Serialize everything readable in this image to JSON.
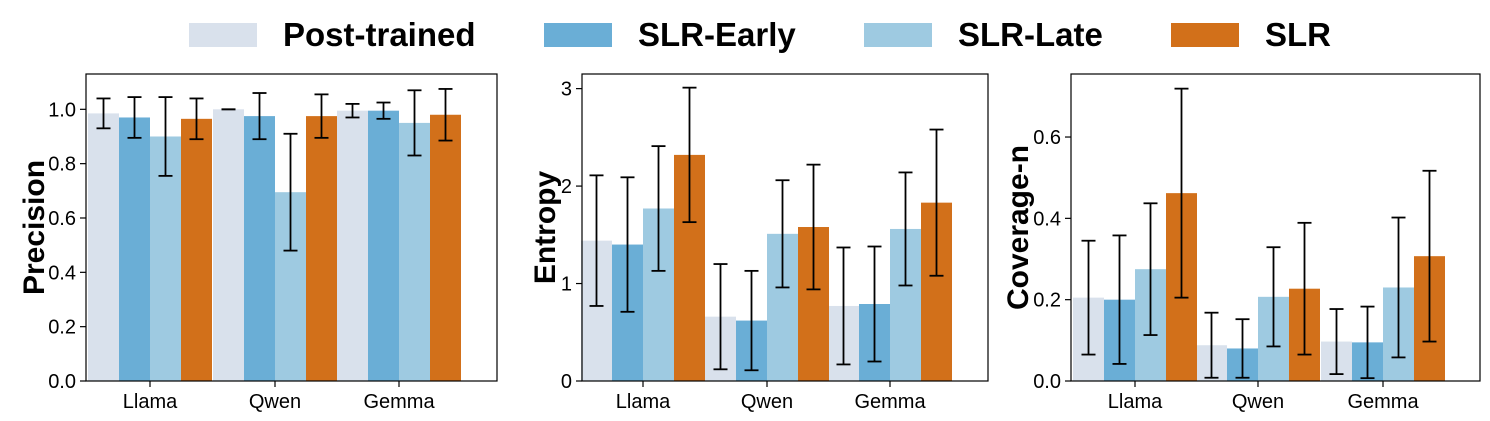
{
  "legend": [
    {
      "label": "Post-trained",
      "color": "#d9e1ec"
    },
    {
      "label": "SLR-Early",
      "color": "#6aaed6"
    },
    {
      "label": "SLR-Late",
      "color": "#9ecae1"
    },
    {
      "label": "SLR",
      "color": "#d2701a"
    }
  ],
  "chart_data": [
    {
      "type": "bar",
      "ylabel": "Precision",
      "categories": [
        "Llama",
        "Qwen",
        "Gemma"
      ],
      "ylim": [
        0,
        1.13
      ],
      "yticks": [
        0.0,
        0.2,
        0.4,
        0.6,
        0.8,
        1.0
      ],
      "ytick_labels": [
        "0.0",
        "0.2",
        "0.4",
        "0.6",
        "0.8",
        "1.0"
      ],
      "error_bars": true,
      "series": [
        {
          "name": "Post-trained",
          "values": [
            0.985,
            1.0,
            0.995
          ],
          "errors": [
            0.055,
            0.0,
            0.025
          ]
        },
        {
          "name": "SLR-Early",
          "values": [
            0.97,
            0.975,
            0.995
          ],
          "errors": [
            0.075,
            0.085,
            0.03
          ]
        },
        {
          "name": "SLR-Late",
          "values": [
            0.9,
            0.695,
            0.95
          ],
          "errors": [
            0.145,
            0.215,
            0.12
          ]
        },
        {
          "name": "SLR",
          "values": [
            0.965,
            0.975,
            0.98
          ],
          "errors": [
            0.075,
            0.08,
            0.095
          ]
        }
      ]
    },
    {
      "type": "bar",
      "ylabel": "Entropy",
      "categories": [
        "Llama",
        "Qwen",
        "Gemma"
      ],
      "ylim": [
        0,
        3.15
      ],
      "yticks": [
        0,
        1,
        2,
        3
      ],
      "ytick_labels": [
        "0",
        "1",
        "2",
        "3"
      ],
      "error_bars": true,
      "series": [
        {
          "name": "Post-trained",
          "values": [
            1.44,
            0.66,
            0.77
          ],
          "errors": [
            0.67,
            0.54,
            0.6
          ]
        },
        {
          "name": "SLR-Early",
          "values": [
            1.4,
            0.62,
            0.79
          ],
          "errors": [
            0.69,
            0.51,
            0.59
          ]
        },
        {
          "name": "SLR-Late",
          "values": [
            1.77,
            1.51,
            1.56
          ],
          "errors": [
            0.64,
            0.55,
            0.58
          ]
        },
        {
          "name": "SLR",
          "values": [
            2.32,
            1.58,
            1.83
          ],
          "errors": [
            0.69,
            0.64,
            0.75
          ]
        }
      ]
    },
    {
      "type": "bar",
      "ylabel": "Coverage-n",
      "categories": [
        "Llama",
        "Qwen",
        "Gemma"
      ],
      "ylim": [
        0,
        0.755
      ],
      "yticks": [
        0.0,
        0.2,
        0.4,
        0.6
      ],
      "ytick_labels": [
        "0.0",
        "0.2",
        "0.4",
        "0.6"
      ],
      "error_bars": true,
      "series": [
        {
          "name": "Post-trained",
          "values": [
            0.205,
            0.088,
            0.097
          ],
          "errors": [
            0.14,
            0.08,
            0.08
          ]
        },
        {
          "name": "SLR-Early",
          "values": [
            0.2,
            0.08,
            0.095
          ],
          "errors": [
            0.158,
            0.072,
            0.088
          ]
        },
        {
          "name": "SLR-Late",
          "values": [
            0.275,
            0.207,
            0.23
          ],
          "errors": [
            0.162,
            0.122,
            0.172
          ]
        },
        {
          "name": "SLR",
          "values": [
            0.462,
            0.227,
            0.307
          ],
          "errors": [
            0.257,
            0.162,
            0.21
          ]
        }
      ]
    }
  ]
}
